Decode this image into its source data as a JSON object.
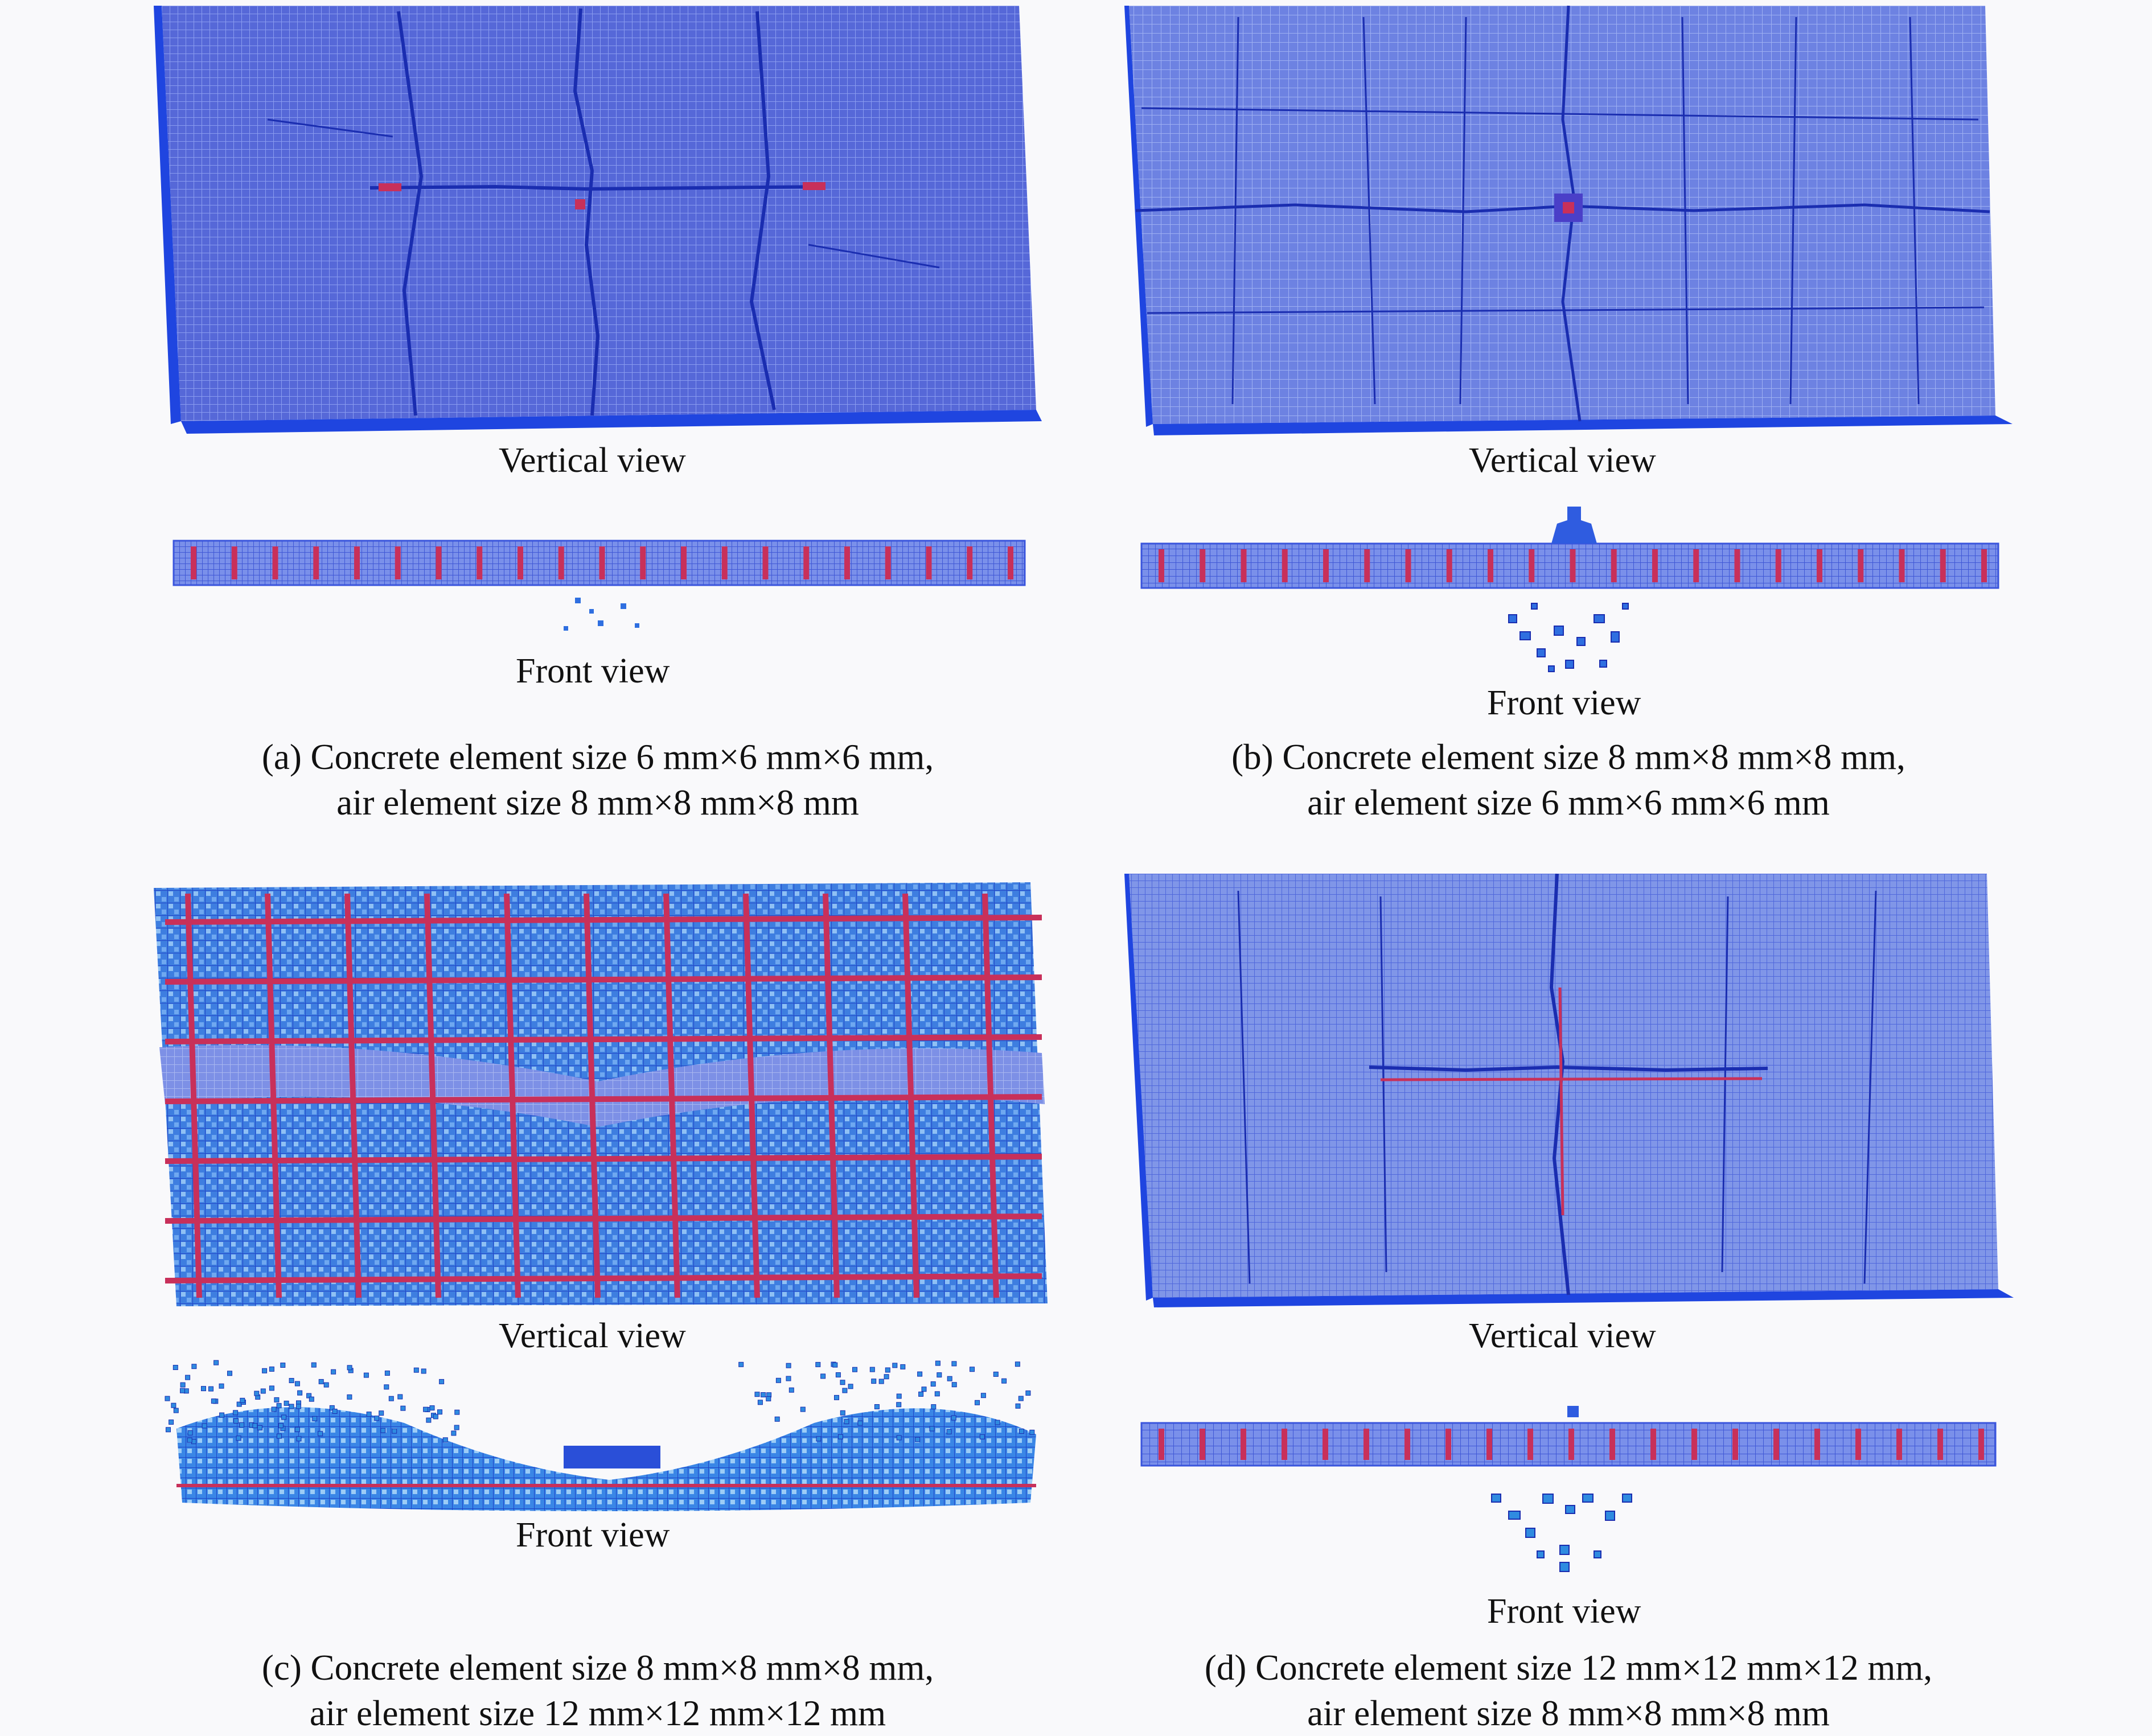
{
  "panels": [
    {
      "id": "a",
      "vertical_label": "Vertical view",
      "front_label": "Front view",
      "caption_line1": "(a) Concrete element size 6 mm×6 mm×6 mm,",
      "caption_line2": "air element size 8 mm×8 mm×8 mm"
    },
    {
      "id": "b",
      "vertical_label": "Vertical view",
      "front_label": "Front view",
      "caption_line1": "(b) Concrete element size 8 mm×8 mm×8 mm,",
      "caption_line2": "air element size 6 mm×6 mm×6 mm"
    },
    {
      "id": "c",
      "vertical_label": "Vertical view",
      "front_label": "Front view",
      "caption_line1": "(c) Concrete element size 8 mm×8 mm×8 mm,",
      "caption_line2": "air element size 12 mm×12 mm×12 mm"
    },
    {
      "id": "d",
      "vertical_label": "Vertical view",
      "front_label": "Front view",
      "caption_line1": "(d) Concrete element size 12 mm×12 mm×12 mm,",
      "caption_line2": "air element size 8 mm×8 mm×8 mm"
    }
  ],
  "colors": {
    "mesh_blue": "#3a55dc",
    "mesh_light": "#7f95e8",
    "edge_blue": "#1f45e0",
    "rebar_red": "#c8305a",
    "crack": "#1a2db0",
    "debris": "#2f8be0"
  }
}
